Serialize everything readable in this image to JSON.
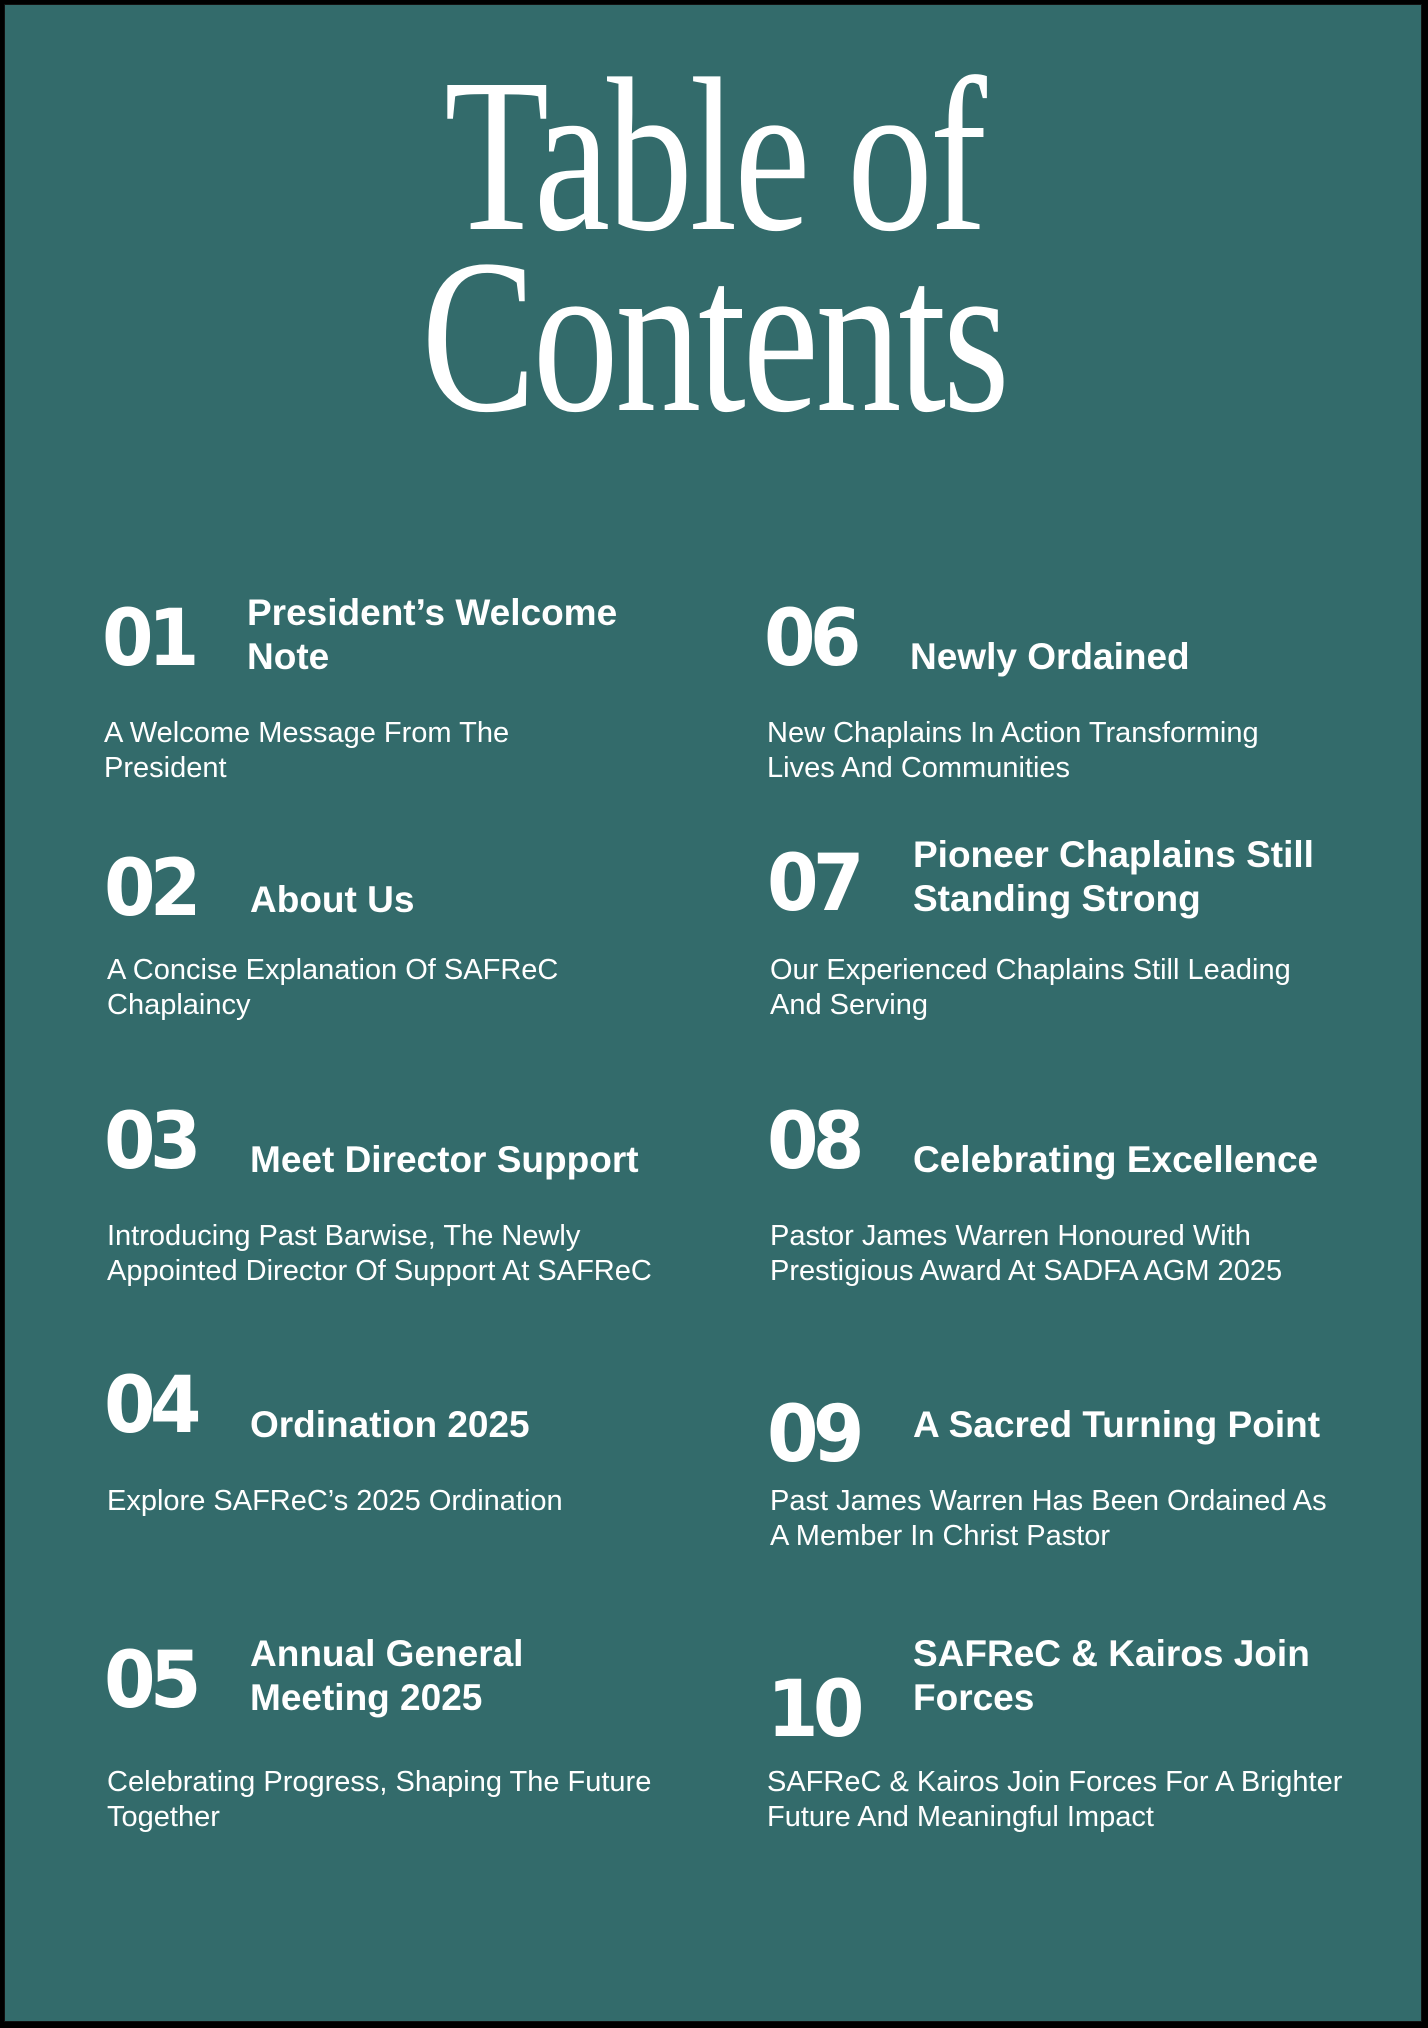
{
  "title": {
    "line1": "Table of",
    "line2": "Contents"
  },
  "background_color": "#336b6b",
  "items": [
    {
      "number": "01",
      "title": "President’s Welcome Note",
      "description": "A Welcome Message From The President"
    },
    {
      "number": "02",
      "title": "About Us",
      "description": "A Concise Explanation Of SAFReC Chaplaincy"
    },
    {
      "number": "03",
      "title": "Meet Director Support",
      "description": "Introducing Past Barwise, The Newly Appointed Director Of Support At SAFReC"
    },
    {
      "number": "04",
      "title": "Ordination 2025",
      "description": "Explore SAFReC’s 2025 Ordination"
    },
    {
      "number": "05",
      "title": "Annual General Meeting 2025",
      "description": "Celebrating Progress, Shaping The Future Together"
    },
    {
      "number": "06",
      "title": "Newly Ordained",
      "description": "New Chaplains In Action Transforming Lives And Communities"
    },
    {
      "number": "07",
      "title": "Pioneer Chaplains Still Standing Strong",
      "description": "Our Experienced Chaplains Still Leading And Serving"
    },
    {
      "number": "08",
      "title": "Celebrating Excellence",
      "description": "Pastor James Warren Honoured With Prestigious Award At SADFA AGM 2025"
    },
    {
      "number": "09",
      "title": "A Sacred Turning Point",
      "description": "Past James Warren  Has Been Ordained As A Member In Christ Pastor"
    },
    {
      "number": "10",
      "title": "SAFReC & Kairos Join Forces",
      "description": "SAFReC & Kairos Join Forces For A Brighter Future And Meaningful Impact"
    }
  ]
}
